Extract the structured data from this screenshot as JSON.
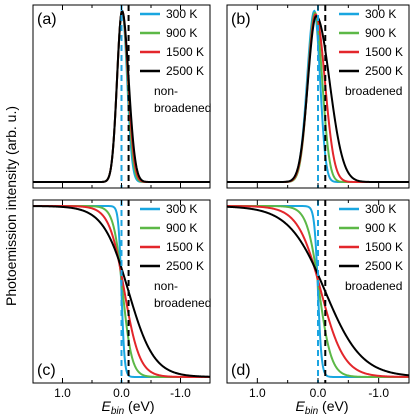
{
  "figure": {
    "ylabel": "Photoemission intensity (arb. u.)",
    "xlabel_main": "E",
    "xlabel_sub": "bin",
    "xlabel_unit": " (eV)"
  },
  "chart_data": [
    {
      "type": "line",
      "panel_label": "(a)",
      "annotation": "non-\nbroadened",
      "xlim": [
        1.5,
        -1.5
      ],
      "xticks": [
        1.0,
        0.0,
        -1.0
      ],
      "xtick_labels": [
        "1.0",
        "0.0",
        "-1.0"
      ],
      "vlines": [
        {
          "x": 0.0,
          "style": "dashed",
          "color": "#1ca4e0"
        },
        {
          "x": -0.12,
          "style": "dashed",
          "color": "#000000"
        }
      ],
      "series": [
        {
          "name": "300 K",
          "color": "#19a6e0",
          "peak_x": -0.01,
          "peak_y": 1.0,
          "width_high_energy": 0.1,
          "width_low_energy": 0.1
        },
        {
          "name": "900 K",
          "color": "#5cb847",
          "peak_x": -0.01,
          "peak_y": 1.0,
          "width_high_energy": 0.1,
          "width_low_energy": 0.11
        },
        {
          "name": "1500 K",
          "color": "#e3262b",
          "peak_x": -0.01,
          "peak_y": 1.0,
          "width_high_energy": 0.1,
          "width_low_energy": 0.12
        },
        {
          "name": "2500 K",
          "color": "#000000",
          "peak_x": -0.01,
          "peak_y": 1.0,
          "width_high_energy": 0.1,
          "width_low_energy": 0.13
        }
      ]
    },
    {
      "type": "line",
      "panel_label": "(b)",
      "annotation": "broadened",
      "xlim": [
        1.5,
        -1.5
      ],
      "xticks": [
        1.0,
        0.0,
        -1.0
      ],
      "xtick_labels": [
        "1.0",
        "0.0",
        "-1.0"
      ],
      "vlines": [
        {
          "x": 0.0,
          "style": "dashed",
          "color": "#1ca4e0"
        },
        {
          "x": -0.12,
          "style": "dashed",
          "color": "#000000"
        }
      ],
      "series": [
        {
          "name": "300 K",
          "color": "#19a6e0",
          "peak_x": 0.06,
          "peak_y": 1.0,
          "width_high_energy": 0.14,
          "width_low_energy": 0.11
        },
        {
          "name": "900 K",
          "color": "#5cb847",
          "peak_x": 0.05,
          "peak_y": 0.99,
          "width_high_energy": 0.14,
          "width_low_energy": 0.14
        },
        {
          "name": "1500 K",
          "color": "#e3262b",
          "peak_x": 0.04,
          "peak_y": 0.98,
          "width_high_energy": 0.15,
          "width_low_energy": 0.18
        },
        {
          "name": "2500 K",
          "color": "#000000",
          "peak_x": 0.03,
          "peak_y": 0.97,
          "width_high_energy": 0.16,
          "width_low_energy": 0.26
        }
      ]
    },
    {
      "type": "line",
      "panel_label": "(c)",
      "annotation": "non-\nbroadened",
      "xlim": [
        1.5,
        -1.5
      ],
      "xticks": [
        1.0,
        0.0,
        -1.0
      ],
      "xtick_labels": [
        "1.0",
        "0.0",
        "-1.0"
      ],
      "vlines": [
        {
          "x": 0.0,
          "style": "dashed",
          "color": "#1ca4e0"
        },
        {
          "x": -0.12,
          "style": "dashed",
          "color": "#000000"
        }
      ],
      "series": [
        {
          "name": "300 K",
          "color": "#19a6e0",
          "mu": 0.0,
          "kT": 0.0259
        },
        {
          "name": "900 K",
          "color": "#5cb847",
          "mu": -0.02,
          "kT": 0.0776
        },
        {
          "name": "1500 K",
          "color": "#e3262b",
          "mu": -0.05,
          "kT": 0.129
        },
        {
          "name": "2500 K",
          "color": "#000000",
          "mu": -0.12,
          "kT": 0.215
        }
      ]
    },
    {
      "type": "line",
      "panel_label": "(d)",
      "annotation": "broadened",
      "xlim": [
        1.5,
        -1.5
      ],
      "xticks": [
        1.0,
        0.0,
        -1.0
      ],
      "xtick_labels": [
        "1.0",
        "0.0",
        "-1.0"
      ],
      "vlines": [
        {
          "x": 0.0,
          "style": "dashed",
          "color": "#1ca4e0"
        },
        {
          "x": -0.12,
          "style": "dashed",
          "color": "#000000"
        }
      ],
      "series": [
        {
          "name": "300 K",
          "color": "#19a6e0",
          "mu": 0.0,
          "kT": 0.03
        },
        {
          "name": "900 K",
          "color": "#5cb847",
          "mu": -0.02,
          "kT": 0.1
        },
        {
          "name": "1500 K",
          "color": "#e3262b",
          "mu": -0.05,
          "kT": 0.19
        },
        {
          "name": "2500 K",
          "color": "#000000",
          "mu": -0.12,
          "kT": 0.3
        }
      ]
    }
  ]
}
